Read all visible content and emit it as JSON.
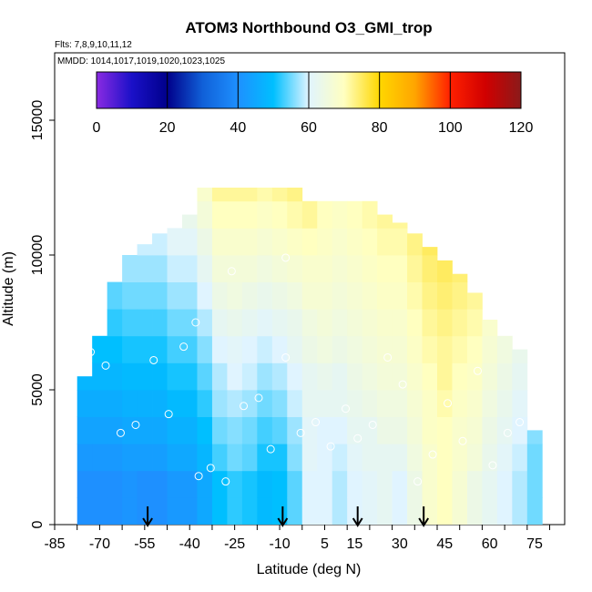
{
  "chart_data": {
    "type": "heatmap",
    "title": "ATOM3 Northbound O3_GMI_trop",
    "flights_label": "Flts: 7,8,9,10,11,12",
    "dates_label": "MMDD: 1014,1017,1019,1020,1023,1025",
    "xlabel": "Latitude (deg N)",
    "ylabel": "Altitude (m)",
    "xlim": [
      -85,
      85
    ],
    "ylim": [
      0,
      17500
    ],
    "x_ticks": [
      -85,
      -70,
      -55,
      -40,
      -25,
      -10,
      5,
      15,
      30,
      45,
      60,
      75
    ],
    "x_tick_labels": [
      "-85",
      "-70",
      "-55",
      "-40",
      "-25",
      "-10",
      "5",
      "15",
      "30",
      "45",
      "60",
      "75"
    ],
    "y_ticks": [
      0,
      5000,
      10000,
      15000
    ],
    "y_tick_labels": [
      "0",
      "5000",
      "10000",
      "15000"
    ],
    "colorbar": {
      "min": 0,
      "max": 120,
      "ticks": [
        0,
        20,
        40,
        60,
        80,
        100,
        120
      ],
      "tick_labels": [
        "0",
        "20",
        "40",
        "60",
        "80",
        "100",
        "120"
      ],
      "stops": [
        {
          "value": 0,
          "color": "#8a2be2"
        },
        {
          "value": 10,
          "color": "#1a10c8"
        },
        {
          "value": 20,
          "color": "#00008b"
        },
        {
          "value": 30,
          "color": "#1060d8"
        },
        {
          "value": 40,
          "color": "#1e90ff"
        },
        {
          "value": 50,
          "color": "#00bfff"
        },
        {
          "value": 60,
          "color": "#e0f4ff"
        },
        {
          "value": 70,
          "color": "#ffffc0"
        },
        {
          "value": 80,
          "color": "#ffd700"
        },
        {
          "value": 90,
          "color": "#ffa500"
        },
        {
          "value": 100,
          "color": "#ff2000"
        },
        {
          "value": 110,
          "color": "#d00000"
        },
        {
          "value": 120,
          "color": "#8b1a1a"
        }
      ]
    },
    "field": {
      "lat_bins": [
        -75,
        -70,
        -65,
        -60,
        -55,
        -50,
        -45,
        -40,
        -35,
        -30,
        -25,
        -20,
        -15,
        -10,
        -5,
        0,
        5,
        10,
        15,
        20,
        25,
        30,
        35,
        40,
        45,
        50,
        55,
        60,
        65,
        70,
        75
      ],
      "alt_bins": [
        0,
        1000,
        2000,
        3000,
        4000,
        5000,
        6000,
        7000,
        8000,
        9000,
        10000,
        11000,
        12000
      ],
      "top_altitude": [
        5500,
        7000,
        9000,
        10000,
        10400,
        10800,
        11000,
        11500,
        12500,
        12500,
        12500,
        12500,
        12500,
        12500,
        12500,
        12000,
        12000,
        12000,
        12000,
        12000,
        11500,
        11200,
        10800,
        10300,
        9800,
        9300,
        8600,
        7600,
        7000,
        6500,
        3500
      ],
      "o3_ppb": [
        [
          40,
          40,
          40,
          41,
          40,
          40,
          42,
          42,
          45,
          50,
          52,
          51,
          49,
          50,
          54,
          60,
          60,
          58,
          60,
          61,
          62,
          60,
          64,
          68,
          70,
          67,
          64,
          62,
          60,
          58,
          55
        ],
        [
          40,
          40,
          40,
          41,
          40,
          40,
          42,
          42,
          45,
          50,
          52,
          51,
          49,
          50,
          54,
          60,
          60,
          58,
          60,
          61,
          62,
          60,
          64,
          68,
          70,
          67,
          64,
          62,
          60,
          58,
          55
        ],
        [
          42,
          42,
          42,
          43,
          43,
          43,
          45,
          45,
          48,
          53,
          55,
          54,
          51,
          51,
          56,
          61,
          60,
          59,
          61,
          62,
          62,
          62,
          65,
          68,
          70,
          68,
          66,
          63,
          61,
          59,
          55
        ],
        [
          44,
          44,
          44,
          45,
          45,
          45,
          47,
          47,
          50,
          55,
          56,
          55,
          53,
          54,
          57,
          61,
          60,
          60,
          62,
          62,
          64,
          64,
          66,
          69,
          70,
          68,
          67,
          64,
          62,
          60,
          56
        ],
        [
          46,
          46,
          46,
          47,
          47,
          47,
          49,
          49,
          52,
          57,
          58,
          57,
          55,
          56,
          59,
          62,
          62,
          62,
          63,
          64,
          65,
          65,
          67,
          69,
          71,
          69,
          68,
          65,
          63,
          61,
          57
        ],
        [
          48,
          48,
          48,
          49,
          49,
          49,
          51,
          51,
          54,
          58,
          60,
          59,
          57,
          58,
          60,
          62,
          63,
          62,
          64,
          65,
          66,
          66,
          68,
          70,
          72,
          70,
          69,
          66,
          64,
          62,
          58
        ],
        [
          50,
          50,
          50,
          51,
          51,
          51,
          53,
          53,
          56,
          60,
          61,
          60,
          59,
          60,
          62,
          64,
          65,
          64,
          65,
          66,
          67,
          67,
          69,
          71,
          72,
          71,
          70,
          67,
          65,
          63,
          59
        ],
        [
          52,
          52,
          52,
          53,
          53,
          53,
          55,
          55,
          58,
          62,
          63,
          62,
          61,
          62,
          63,
          65,
          66,
          65,
          66,
          67,
          68,
          68,
          70,
          72,
          73,
          72,
          71,
          68,
          66,
          64,
          60
        ],
        [
          54,
          54,
          54,
          55,
          55,
          55,
          57,
          57,
          60,
          64,
          65,
          64,
          63,
          64,
          65,
          67,
          67,
          66,
          67,
          68,
          69,
          69,
          71,
          73,
          74,
          73,
          72,
          69,
          67,
          65,
          61
        ],
        [
          56,
          56,
          56,
          57,
          57,
          57,
          59,
          59,
          62,
          66,
          66,
          66,
          65,
          66,
          67,
          68,
          68,
          67,
          68,
          69,
          70,
          70,
          72,
          74,
          75,
          74,
          73,
          70,
          68,
          66,
          62
        ],
        [
          58,
          58,
          58,
          59,
          59,
          59,
          61,
          61,
          64,
          68,
          68,
          68,
          67,
          68,
          69,
          70,
          69,
          68,
          69,
          70,
          71,
          71,
          73,
          75,
          76,
          75,
          74,
          71,
          69,
          67,
          63
        ],
        [
          60,
          60,
          60,
          61,
          61,
          61,
          63,
          63,
          66,
          70,
          70,
          70,
          69,
          70,
          71,
          72,
          70,
          69,
          70,
          71,
          72,
          72,
          74,
          76,
          77,
          76,
          75,
          72,
          70,
          68,
          64
        ],
        [
          62,
          62,
          62,
          63,
          63,
          63,
          65,
          65,
          68,
          72,
          72,
          72,
          71,
          72,
          73,
          74,
          71,
          70,
          71,
          72,
          73,
          73,
          75,
          77,
          78,
          77,
          76,
          73,
          71,
          69,
          65
        ]
      ]
    },
    "obs_points": [
      {
        "lat": -73,
        "alt": 6400
      },
      {
        "lat": -68,
        "alt": 5900
      },
      {
        "lat": -63,
        "alt": 3400
      },
      {
        "lat": -58,
        "alt": 3700
      },
      {
        "lat": -52,
        "alt": 6100
      },
      {
        "lat": -47,
        "alt": 4100
      },
      {
        "lat": -42,
        "alt": 6600
      },
      {
        "lat": -37,
        "alt": 1800
      },
      {
        "lat": -33,
        "alt": 2100
      },
      {
        "lat": -28,
        "alt": 1600
      },
      {
        "lat": -22,
        "alt": 4400
      },
      {
        "lat": -17,
        "alt": 4700
      },
      {
        "lat": -13,
        "alt": 2800
      },
      {
        "lat": -8,
        "alt": 6200
      },
      {
        "lat": -3,
        "alt": 3400
      },
      {
        "lat": 2,
        "alt": 3800
      },
      {
        "lat": 7,
        "alt": 2900
      },
      {
        "lat": 12,
        "alt": 4300
      },
      {
        "lat": 16,
        "alt": 3200
      },
      {
        "lat": 21,
        "alt": 3700
      },
      {
        "lat": 26,
        "alt": 6200
      },
      {
        "lat": 31,
        "alt": 5200
      },
      {
        "lat": 36,
        "alt": 1600
      },
      {
        "lat": 41,
        "alt": 2600
      },
      {
        "lat": 46,
        "alt": 4500
      },
      {
        "lat": 51,
        "alt": 3100
      },
      {
        "lat": 56,
        "alt": 5700
      },
      {
        "lat": 61,
        "alt": 2200
      },
      {
        "lat": 66,
        "alt": 3400
      },
      {
        "lat": 70,
        "alt": 3800
      },
      {
        "lat": -38,
        "alt": 7500
      },
      {
        "lat": -26,
        "alt": 9400
      },
      {
        "lat": -8,
        "alt": 9900
      }
    ],
    "flight_markers_lat": [
      -54,
      -9,
      16,
      38
    ]
  }
}
